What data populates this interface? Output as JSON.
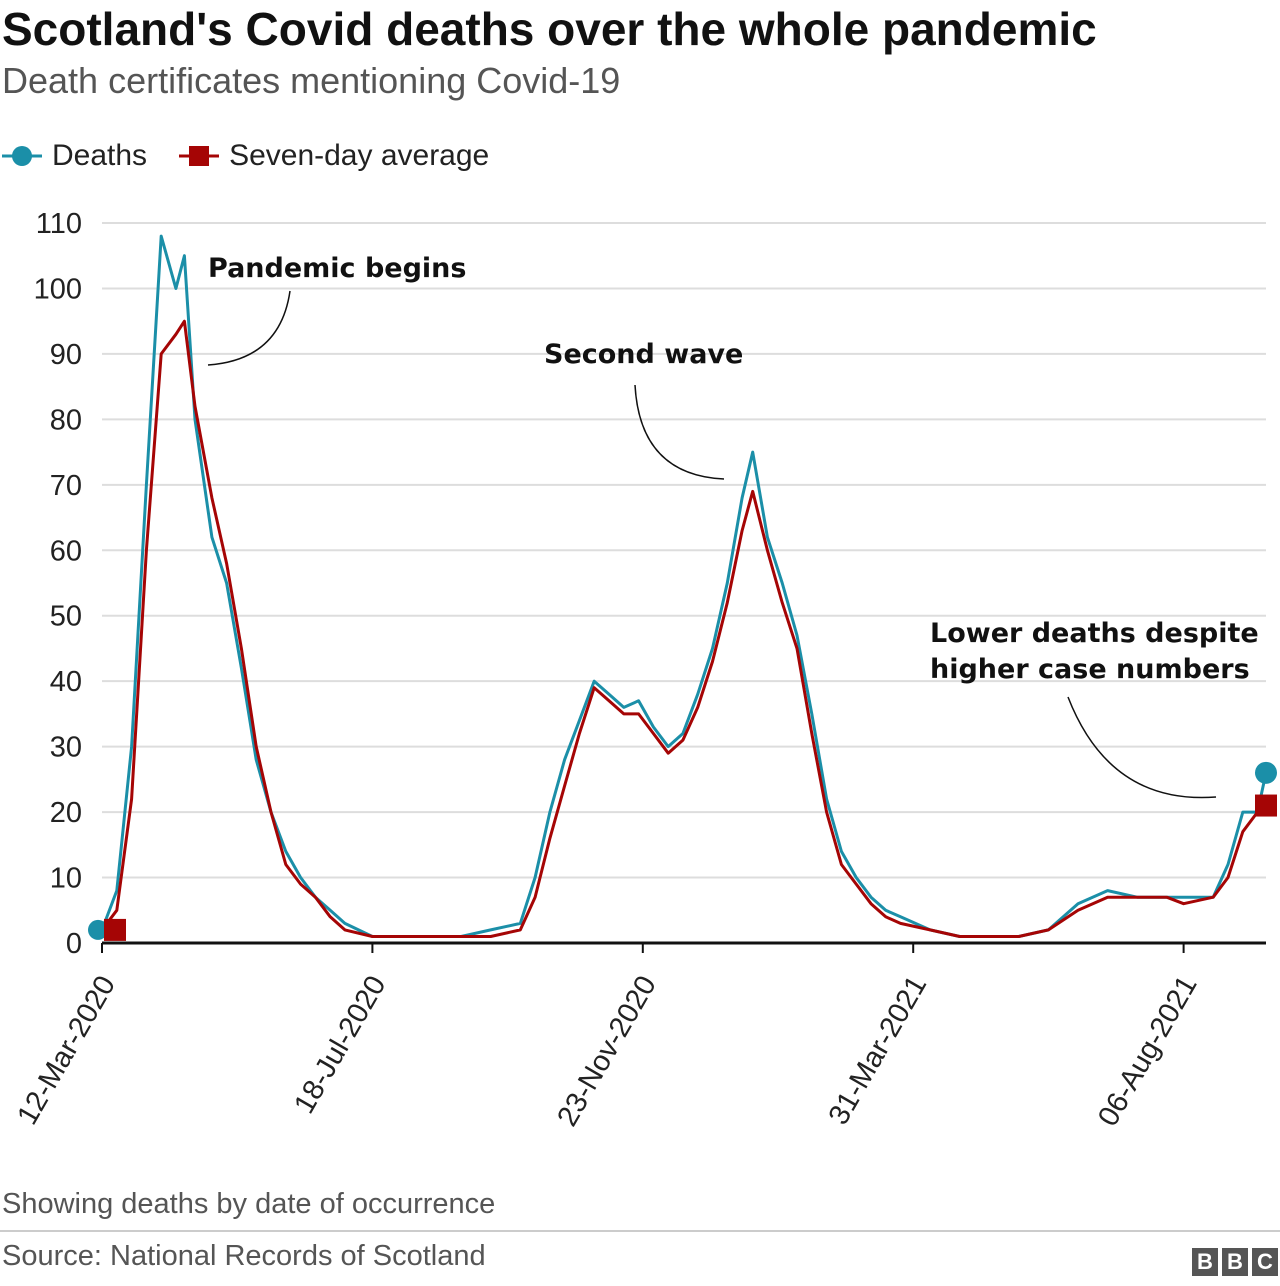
{
  "header": {
    "title": "Scotland's Covid deaths over the whole pandemic",
    "subtitle": "Death certificates mentioning Covid-19"
  },
  "legend": {
    "deaths_label": "Deaths",
    "average_label": "Seven-day average"
  },
  "footer": {
    "note": "Showing deaths by date of occurrence",
    "source": "Source: National Records of Scotland",
    "logo": "BBC"
  },
  "colors": {
    "deaths": "#1b8fa8",
    "average": "#a50505",
    "grid": "#dddddd",
    "axis": "#111111"
  },
  "chart_data": {
    "type": "line",
    "title": "Scotland's Covid deaths over the whole pandemic",
    "subtitle": "Death certificates mentioning Covid-19",
    "xlabel": "",
    "ylabel": "",
    "x_start": "12-Mar-2020",
    "x_end": "14-Sep-2021",
    "ylim": [
      0,
      110
    ],
    "yticks": [
      0,
      10,
      20,
      30,
      40,
      50,
      60,
      70,
      80,
      90,
      100,
      110
    ],
    "xticks": [
      "12-Mar-2020",
      "18-Jul-2020",
      "23-Nov-2020",
      "31-Mar-2021",
      "06-Aug-2021"
    ],
    "grid": true,
    "legend_position": "top-left",
    "annotations": [
      {
        "text": "Pandemic begins",
        "x": "15-Apr-2020",
        "y": 88
      },
      {
        "text": "Second wave",
        "x": "21-Jan-2021",
        "y": 71
      },
      {
        "text": "Lower deaths despite higher case numbers",
        "x": "07-Sep-2021",
        "y": 22
      }
    ],
    "series": [
      {
        "name": "Deaths",
        "points": [
          {
            "x": "12-Mar-2020",
            "y": 2
          },
          {
            "x": "19-Mar-2020",
            "y": 8
          },
          {
            "x": "26-Mar-2020",
            "y": 30
          },
          {
            "x": "02-Apr-2020",
            "y": 70
          },
          {
            "x": "09-Apr-2020",
            "y": 108
          },
          {
            "x": "16-Apr-2020",
            "y": 100
          },
          {
            "x": "20-Apr-2020",
            "y": 105
          },
          {
            "x": "25-Apr-2020",
            "y": 80
          },
          {
            "x": "03-May-2020",
            "y": 62
          },
          {
            "x": "10-May-2020",
            "y": 55
          },
          {
            "x": "17-May-2020",
            "y": 42
          },
          {
            "x": "24-May-2020",
            "y": 28
          },
          {
            "x": "31-May-2020",
            "y": 20
          },
          {
            "x": "07-Jun-2020",
            "y": 14
          },
          {
            "x": "14-Jun-2020",
            "y": 10
          },
          {
            "x": "21-Jun-2020",
            "y": 7
          },
          {
            "x": "28-Jun-2020",
            "y": 5
          },
          {
            "x": "05-Jul-2020",
            "y": 3
          },
          {
            "x": "18-Jul-2020",
            "y": 1
          },
          {
            "x": "01-Aug-2020",
            "y": 1
          },
          {
            "x": "15-Aug-2020",
            "y": 1
          },
          {
            "x": "29-Aug-2020",
            "y": 1
          },
          {
            "x": "12-Sep-2020",
            "y": 2
          },
          {
            "x": "26-Sep-2020",
            "y": 3
          },
          {
            "x": "03-Oct-2020",
            "y": 10
          },
          {
            "x": "10-Oct-2020",
            "y": 20
          },
          {
            "x": "17-Oct-2020",
            "y": 28
          },
          {
            "x": "24-Oct-2020",
            "y": 34
          },
          {
            "x": "31-Oct-2020",
            "y": 40
          },
          {
            "x": "07-Nov-2020",
            "y": 38
          },
          {
            "x": "14-Nov-2020",
            "y": 36
          },
          {
            "x": "21-Nov-2020",
            "y": 37
          },
          {
            "x": "28-Nov-2020",
            "y": 33
          },
          {
            "x": "05-Dec-2020",
            "y": 30
          },
          {
            "x": "12-Dec-2020",
            "y": 32
          },
          {
            "x": "19-Dec-2020",
            "y": 38
          },
          {
            "x": "26-Dec-2020",
            "y": 45
          },
          {
            "x": "02-Jan-2021",
            "y": 55
          },
          {
            "x": "09-Jan-2021",
            "y": 68
          },
          {
            "x": "14-Jan-2021",
            "y": 75
          },
          {
            "x": "21-Jan-2021",
            "y": 62
          },
          {
            "x": "28-Jan-2021",
            "y": 55
          },
          {
            "x": "04-Feb-2021",
            "y": 47
          },
          {
            "x": "11-Feb-2021",
            "y": 35
          },
          {
            "x": "18-Feb-2021",
            "y": 22
          },
          {
            "x": "25-Feb-2021",
            "y": 14
          },
          {
            "x": "04-Mar-2021",
            "y": 10
          },
          {
            "x": "11-Mar-2021",
            "y": 7
          },
          {
            "x": "18-Mar-2021",
            "y": 5
          },
          {
            "x": "25-Mar-2021",
            "y": 4
          },
          {
            "x": "08-Apr-2021",
            "y": 2
          },
          {
            "x": "22-Apr-2021",
            "y": 1
          },
          {
            "x": "06-May-2021",
            "y": 1
          },
          {
            "x": "20-May-2021",
            "y": 1
          },
          {
            "x": "03-Jun-2021",
            "y": 2
          },
          {
            "x": "17-Jun-2021",
            "y": 6
          },
          {
            "x": "01-Jul-2021",
            "y": 8
          },
          {
            "x": "15-Jul-2021",
            "y": 7
          },
          {
            "x": "29-Jul-2021",
            "y": 7
          },
          {
            "x": "06-Aug-2021",
            "y": 7
          },
          {
            "x": "20-Aug-2021",
            "y": 7
          },
          {
            "x": "27-Aug-2021",
            "y": 12
          },
          {
            "x": "03-Sep-2021",
            "y": 20
          },
          {
            "x": "10-Sep-2021",
            "y": 20
          },
          {
            "x": "14-Sep-2021",
            "y": 26
          }
        ]
      },
      {
        "name": "Seven-day average",
        "points": [
          {
            "x": "12-Mar-2020",
            "y": 2
          },
          {
            "x": "19-Mar-2020",
            "y": 5
          },
          {
            "x": "26-Mar-2020",
            "y": 22
          },
          {
            "x": "02-Apr-2020",
            "y": 60
          },
          {
            "x": "09-Apr-2020",
            "y": 90
          },
          {
            "x": "16-Apr-2020",
            "y": 93
          },
          {
            "x": "20-Apr-2020",
            "y": 95
          },
          {
            "x": "25-Apr-2020",
            "y": 82
          },
          {
            "x": "03-May-2020",
            "y": 68
          },
          {
            "x": "10-May-2020",
            "y": 58
          },
          {
            "x": "17-May-2020",
            "y": 45
          },
          {
            "x": "24-May-2020",
            "y": 30
          },
          {
            "x": "31-May-2020",
            "y": 20
          },
          {
            "x": "07-Jun-2020",
            "y": 12
          },
          {
            "x": "14-Jun-2020",
            "y": 9
          },
          {
            "x": "21-Jun-2020",
            "y": 7
          },
          {
            "x": "28-Jun-2020",
            "y": 4
          },
          {
            "x": "05-Jul-2020",
            "y": 2
          },
          {
            "x": "18-Jul-2020",
            "y": 1
          },
          {
            "x": "01-Aug-2020",
            "y": 1
          },
          {
            "x": "15-Aug-2020",
            "y": 1
          },
          {
            "x": "29-Aug-2020",
            "y": 1
          },
          {
            "x": "12-Sep-2020",
            "y": 1
          },
          {
            "x": "26-Sep-2020",
            "y": 2
          },
          {
            "x": "03-Oct-2020",
            "y": 7
          },
          {
            "x": "10-Oct-2020",
            "y": 16
          },
          {
            "x": "17-Oct-2020",
            "y": 24
          },
          {
            "x": "24-Oct-2020",
            "y": 32
          },
          {
            "x": "31-Oct-2020",
            "y": 39
          },
          {
            "x": "07-Nov-2020",
            "y": 37
          },
          {
            "x": "14-Nov-2020",
            "y": 35
          },
          {
            "x": "21-Nov-2020",
            "y": 35
          },
          {
            "x": "28-Nov-2020",
            "y": 32
          },
          {
            "x": "05-Dec-2020",
            "y": 29
          },
          {
            "x": "12-Dec-2020",
            "y": 31
          },
          {
            "x": "19-Dec-2020",
            "y": 36
          },
          {
            "x": "26-Dec-2020",
            "y": 43
          },
          {
            "x": "02-Jan-2021",
            "y": 52
          },
          {
            "x": "09-Jan-2021",
            "y": 63
          },
          {
            "x": "14-Jan-2021",
            "y": 69
          },
          {
            "x": "21-Jan-2021",
            "y": 60
          },
          {
            "x": "28-Jan-2021",
            "y": 52
          },
          {
            "x": "04-Feb-2021",
            "y": 45
          },
          {
            "x": "11-Feb-2021",
            "y": 32
          },
          {
            "x": "18-Feb-2021",
            "y": 20
          },
          {
            "x": "25-Feb-2021",
            "y": 12
          },
          {
            "x": "04-Mar-2021",
            "y": 9
          },
          {
            "x": "11-Mar-2021",
            "y": 6
          },
          {
            "x": "18-Mar-2021",
            "y": 4
          },
          {
            "x": "25-Mar-2021",
            "y": 3
          },
          {
            "x": "08-Apr-2021",
            "y": 2
          },
          {
            "x": "22-Apr-2021",
            "y": 1
          },
          {
            "x": "06-May-2021",
            "y": 1
          },
          {
            "x": "20-May-2021",
            "y": 1
          },
          {
            "x": "03-Jun-2021",
            "y": 2
          },
          {
            "x": "17-Jun-2021",
            "y": 5
          },
          {
            "x": "01-Jul-2021",
            "y": 7
          },
          {
            "x": "15-Jul-2021",
            "y": 7
          },
          {
            "x": "29-Jul-2021",
            "y": 7
          },
          {
            "x": "06-Aug-2021",
            "y": 6
          },
          {
            "x": "20-Aug-2021",
            "y": 7
          },
          {
            "x": "27-Aug-2021",
            "y": 10
          },
          {
            "x": "03-Sep-2021",
            "y": 17
          },
          {
            "x": "10-Sep-2021",
            "y": 20
          },
          {
            "x": "14-Sep-2021",
            "y": 21
          }
        ]
      }
    ]
  }
}
